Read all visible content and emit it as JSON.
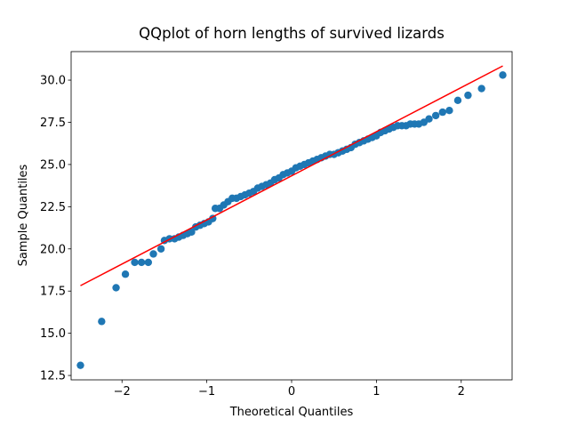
{
  "chart_data": {
    "type": "scatter",
    "title": "QQplot of horn lengths of survived lizards",
    "xlabel": "Theoretical Quantiles",
    "ylabel": "Sample Quantiles",
    "xlim": [
      -2.6,
      2.6
    ],
    "ylim": [
      12.24,
      31.69
    ],
    "xticks": [
      {
        "value": -2,
        "label": "−2"
      },
      {
        "value": -1,
        "label": "−1"
      },
      0,
      1,
      2
    ],
    "yticks": [
      12.5,
      {
        "value": 15,
        "label": "15.0"
      },
      17.5,
      {
        "value": 20,
        "label": "20.0"
      },
      22.5,
      {
        "value": 25,
        "label": "25.0"
      },
      27.5,
      {
        "value": 30,
        "label": "30.0"
      }
    ],
    "series": [
      {
        "type": "scatter",
        "color": "#1f77b4",
        "x": [
          -2.49,
          -2.24,
          -2.07,
          -1.96,
          -1.85,
          -1.77,
          -1.69,
          -1.63,
          -1.54,
          -1.5,
          -1.44,
          -1.38,
          -1.33,
          -1.28,
          -1.23,
          -1.18,
          -1.13,
          -1.08,
          -1.03,
          -0.98,
          -0.93,
          -0.9,
          -0.85,
          -0.8,
          -0.75,
          -0.7,
          -0.65,
          -0.6,
          -0.55,
          -0.5,
          -0.45,
          -0.4,
          -0.35,
          -0.3,
          -0.25,
          -0.2,
          -0.15,
          -0.1,
          -0.05,
          0,
          0.05,
          0.1,
          0.15,
          0.2,
          0.25,
          0.3,
          0.35,
          0.4,
          0.45,
          0.5,
          0.55,
          0.6,
          0.65,
          0.7,
          0.75,
          0.8,
          0.85,
          0.9,
          0.95,
          1.0,
          1.05,
          1.1,
          1.15,
          1.2,
          1.25,
          1.3,
          1.35,
          1.4,
          1.45,
          1.5,
          1.56,
          1.62,
          1.7,
          1.78,
          1.86,
          1.96,
          2.08,
          2.24,
          2.49
        ],
        "y": [
          13.1,
          15.7,
          17.7,
          18.5,
          19.2,
          19.2,
          19.2,
          19.7,
          20.0,
          20.5,
          20.6,
          20.6,
          20.7,
          20.8,
          20.9,
          21.0,
          21.3,
          21.4,
          21.5,
          21.6,
          21.8,
          22.4,
          22.4,
          22.6,
          22.8,
          23.0,
          23.0,
          23.1,
          23.2,
          23.3,
          23.4,
          23.6,
          23.7,
          23.8,
          23.9,
          24.1,
          24.2,
          24.4,
          24.5,
          24.6,
          24.8,
          24.9,
          25.0,
          25.1,
          25.2,
          25.3,
          25.4,
          25.5,
          25.6,
          25.6,
          25.7,
          25.8,
          25.9,
          26.0,
          26.2,
          26.3,
          26.4,
          26.5,
          26.6,
          26.7,
          26.9,
          27.0,
          27.1,
          27.2,
          27.3,
          27.3,
          27.3,
          27.4,
          27.4,
          27.4,
          27.5,
          27.7,
          27.9,
          28.1,
          28.2,
          28.8,
          29.1,
          29.5,
          30.3
        ]
      },
      {
        "type": "line",
        "color": "#ff0000",
        "x": [
          -2.49,
          2.49
        ],
        "y": [
          17.82,
          30.84
        ]
      }
    ]
  }
}
